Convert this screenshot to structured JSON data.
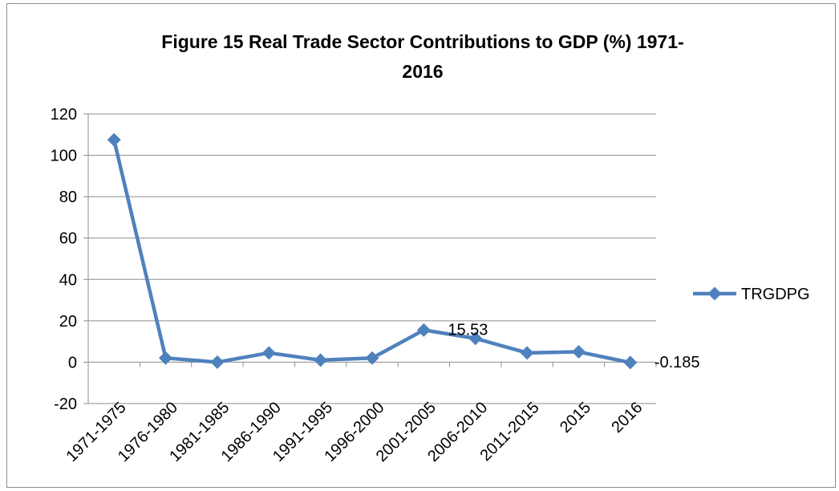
{
  "chart_data": {
    "type": "line",
    "title_line1": "Figure 15  Real Trade Sector Contributions to GDP (%) 1971-",
    "title_line2": "2016",
    "categories": [
      "1971-1975",
      "1976-1980",
      "1981-1985",
      "1986-1990",
      "1991-1995",
      "1996-2000",
      "2001-2005",
      "2006-2010",
      "2011-2015",
      "2015",
      "2016"
    ],
    "series": [
      {
        "name": "TRGDPG",
        "values": [
          107.5,
          2,
          0,
          4.5,
          1,
          2,
          15.53,
          11.5,
          4.5,
          5,
          -0.185
        ],
        "color": "#4f81bd"
      }
    ],
    "data_labels": [
      {
        "index": 6,
        "text": "15.53"
      },
      {
        "index": 10,
        "text": "-0.185"
      }
    ],
    "ylim": [
      -20,
      120
    ],
    "yticks": [
      "120",
      "100",
      "80",
      "60",
      "40",
      "20",
      "0",
      "-20"
    ],
    "ytick_values": [
      120,
      100,
      80,
      60,
      40,
      20,
      0,
      -20
    ],
    "grid": true,
    "legend_position": "right"
  }
}
